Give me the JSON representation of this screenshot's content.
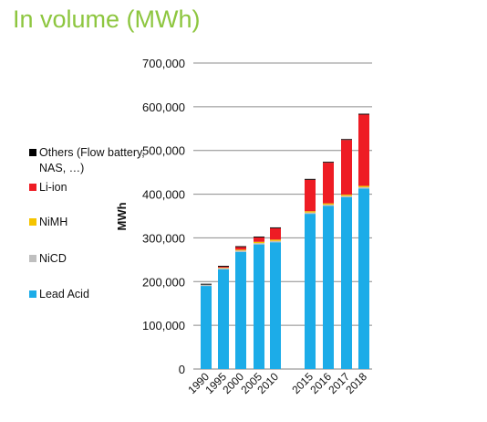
{
  "chart_data": {
    "type": "bar",
    "stacked": true,
    "title": "In volume (MWh)",
    "ylabel": "MWh",
    "xlabel": "",
    "ylim": [
      0,
      700000
    ],
    "yticks": [
      0,
      100000,
      200000,
      300000,
      400000,
      500000,
      600000,
      700000
    ],
    "ytick_labels": [
      "0",
      "100,000",
      "200,000",
      "300,000",
      "400,000",
      "500,000",
      "600,000",
      "700,000"
    ],
    "grid": "horizontal",
    "legend_position": "left",
    "categories": [
      "1990",
      "1995",
      "2000",
      "2005",
      "2010",
      "2015",
      "2016",
      "2017",
      "2018"
    ],
    "series": [
      {
        "name": "Lead Acid",
        "color": "#1cace8",
        "values": [
          190000,
          228000,
          268000,
          285000,
          290000,
          355000,
          373000,
          393000,
          413000
        ]
      },
      {
        "name": "NiCD",
        "color": "#bfbfbf",
        "values": [
          3000,
          3000,
          3000,
          3000,
          3000,
          3000,
          3000,
          3000,
          3000
        ]
      },
      {
        "name": "NiMH",
        "color": "#f5c400",
        "values": [
          0,
          1000,
          2000,
          3000,
          3000,
          3000,
          3000,
          3000,
          3000
        ]
      },
      {
        "name": "Li-ion",
        "color": "#ee1c24",
        "values": [
          0,
          2000,
          6000,
          10000,
          26000,
          72000,
          93000,
          125000,
          163000
        ]
      },
      {
        "name": "Others (Flow battery, NAS, …)",
        "color": "#000000",
        "values": [
          2000,
          2000,
          2000,
          2000,
          2000,
          2000,
          2000,
          2000,
          2000
        ]
      }
    ],
    "legend_order": [
      "Others (Flow battery, NAS, …)",
      "Li-ion",
      "NiMH",
      "NiCD",
      "Lead Acid"
    ]
  }
}
